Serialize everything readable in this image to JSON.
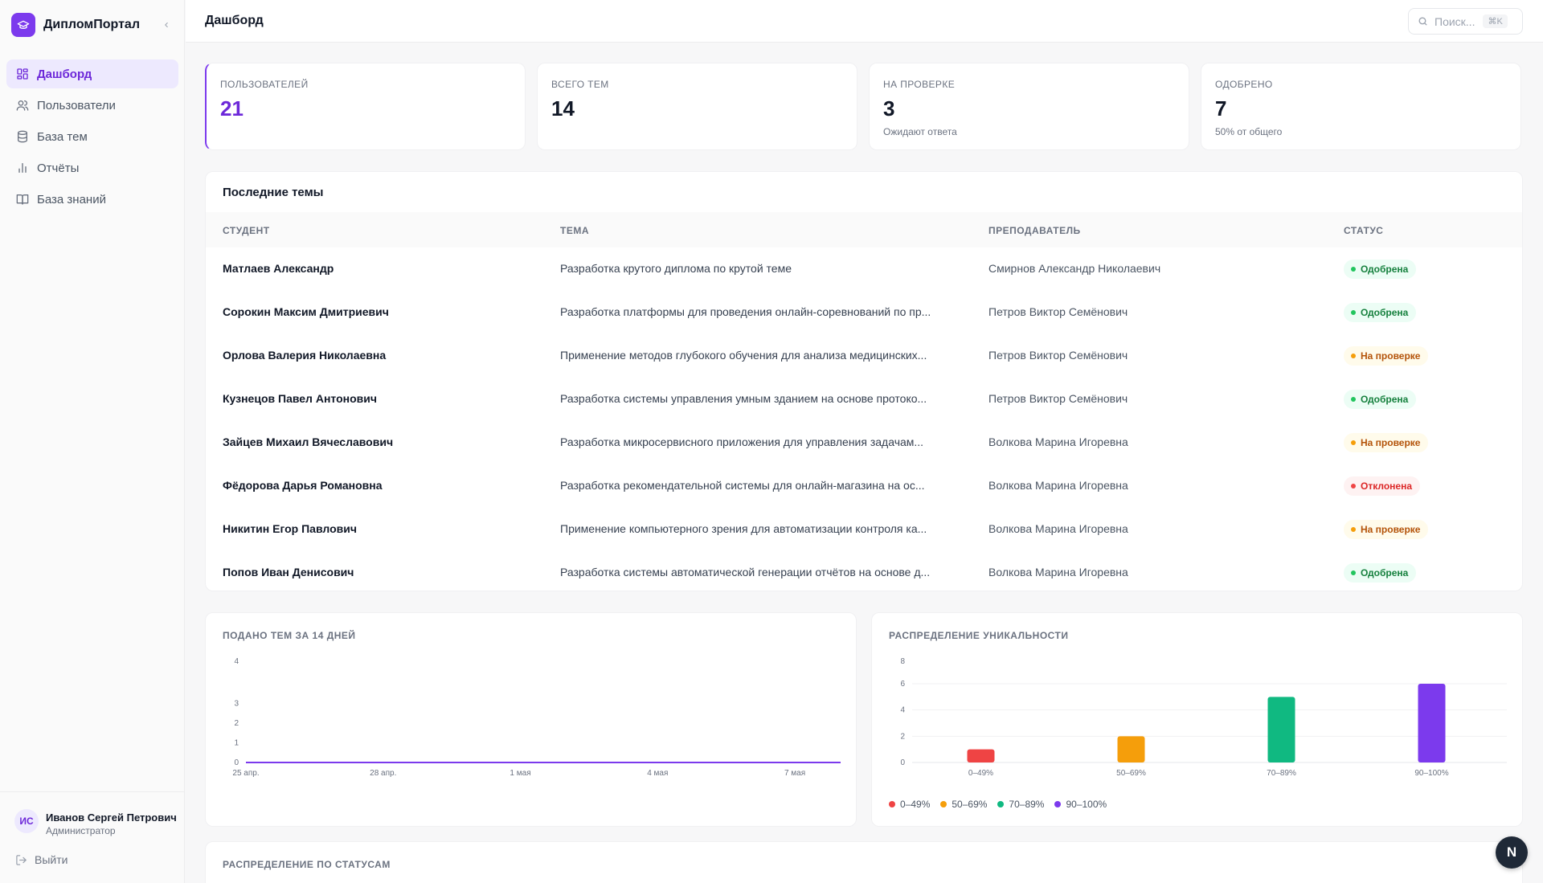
{
  "app": {
    "name": "ДипломПортал"
  },
  "sidebar": {
    "items": [
      {
        "label": "Дашборд",
        "icon": "grid-icon"
      },
      {
        "label": "Пользователи",
        "icon": "users-icon"
      },
      {
        "label": "База тем",
        "icon": "database-icon"
      },
      {
        "label": "Отчёты",
        "icon": "bar-chart-icon"
      },
      {
        "label": "База знаний",
        "icon": "book-icon"
      }
    ],
    "user": {
      "initials": "ИС",
      "name": "Иванов Сергей Петрович",
      "role": "Администратор"
    },
    "logout_label": "Выйти"
  },
  "header": {
    "title": "Дашборд",
    "search_placeholder": "Поиск...",
    "search_shortcut": "⌘K"
  },
  "stats": [
    {
      "label": "ПОЛЬЗОВАТЕЛЕЙ",
      "value": "21",
      "sub": ""
    },
    {
      "label": "ВСЕГО ТЕМ",
      "value": "14",
      "sub": ""
    },
    {
      "label": "НА ПРОВЕРКЕ",
      "value": "3",
      "sub": "Ожидают ответа"
    },
    {
      "label": "ОДОБРЕНО",
      "value": "7",
      "sub": "50% от общего"
    }
  ],
  "recent": {
    "title": "Последние темы",
    "columns": [
      "СТУДЕНТ",
      "ТЕМА",
      "ПРЕПОДАВАТЕЛЬ",
      "СТАТУС"
    ],
    "rows": [
      {
        "student": "Матлаев Александр",
        "topic": "Разработка крутого диплома по крутой теме",
        "teacher": "Смирнов Александр Николаевич",
        "status": "Одобрена",
        "status_kind": "approved"
      },
      {
        "student": "Сорокин Максим Дмитриевич",
        "topic": "Разработка платформы для проведения онлайн-соревнований по пр...",
        "teacher": "Петров Виктор Семёнович",
        "status": "Одобрена",
        "status_kind": "approved"
      },
      {
        "student": "Орлова Валерия Николаевна",
        "topic": "Применение методов глубокого обучения для анализа медицинских...",
        "teacher": "Петров Виктор Семёнович",
        "status": "На проверке",
        "status_kind": "review"
      },
      {
        "student": "Кузнецов Павел Антонович",
        "topic": "Разработка системы управления умным зданием на основе протоко...",
        "teacher": "Петров Виктор Семёнович",
        "status": "Одобрена",
        "status_kind": "approved"
      },
      {
        "student": "Зайцев Михаил Вячеславович",
        "topic": "Разработка микросервисного приложения для управления задачам...",
        "teacher": "Волкова Марина Игоревна",
        "status": "На проверке",
        "status_kind": "review"
      },
      {
        "student": "Фёдорова Дарья Романовна",
        "topic": "Разработка рекомендательной системы для онлайн-магазина на ос...",
        "teacher": "Волкова Марина Игоревна",
        "status": "Отклонена",
        "status_kind": "rejected"
      },
      {
        "student": "Никитин Егор Павлович",
        "topic": "Применение компьютерного зрения для автоматизации контроля ка...",
        "teacher": "Волкова Марина Игоревна",
        "status": "На проверке",
        "status_kind": "review"
      },
      {
        "student": "Попов Иван Денисович",
        "topic": "Разработка системы автоматической генерации отчётов на основе д...",
        "teacher": "Волкова Марина Игоревна",
        "status": "Одобрена",
        "status_kind": "approved"
      }
    ]
  },
  "status_section": {
    "title": "РАСПРЕДЕЛЕНИЕ ПО СТАТУСАМ"
  },
  "floating_button": {
    "label": "N"
  },
  "colors": {
    "accent": "#7c3aed",
    "red": "#ef4444",
    "orange": "#f59e0b",
    "green": "#10b981",
    "purple": "#7c3aed"
  },
  "chart_data": [
    {
      "type": "line",
      "title": "ПОДАНО ТЕМ ЗА 14 ДНЕЙ",
      "x": [
        "25 апр.",
        "26 апр.",
        "27 апр.",
        "28 апр.",
        "29 апр.",
        "30 апр.",
        "1 мая",
        "2 мая",
        "3 мая",
        "4 мая",
        "5 мая",
        "6 мая",
        "7 мая",
        "8 мая"
      ],
      "x_tick_labels": [
        "25 апр.",
        "28 апр.",
        "1 мая",
        "4 мая",
        "7 мая"
      ],
      "y_tick_labels": [
        "0",
        "1",
        "2",
        "3",
        "4"
      ],
      "series": [
        {
          "values": [
            0,
            0,
            0,
            0,
            0,
            0,
            0,
            0,
            0,
            0,
            0,
            0,
            0,
            0
          ]
        }
      ],
      "ylim": [
        0,
        4
      ],
      "color": "#7c3aed",
      "grid": false
    },
    {
      "type": "bar",
      "title": "РАСПРЕДЕЛЕНИЕ УНИКАЛЬНОСТИ",
      "categories": [
        "0–49%",
        "50–69%",
        "70–89%",
        "90–100%"
      ],
      "values": [
        1,
        2,
        5,
        6
      ],
      "colors": [
        "#ef4444",
        "#f59e0b",
        "#10b981",
        "#7c3aed"
      ],
      "y_tick_labels": [
        "0",
        "2",
        "4",
        "6",
        "8"
      ],
      "ylim": [
        0,
        8
      ],
      "legend": [
        "0–49%",
        "50–69%",
        "70–89%",
        "90–100%"
      ],
      "legend_position": "bottom-left",
      "grid": true
    }
  ]
}
